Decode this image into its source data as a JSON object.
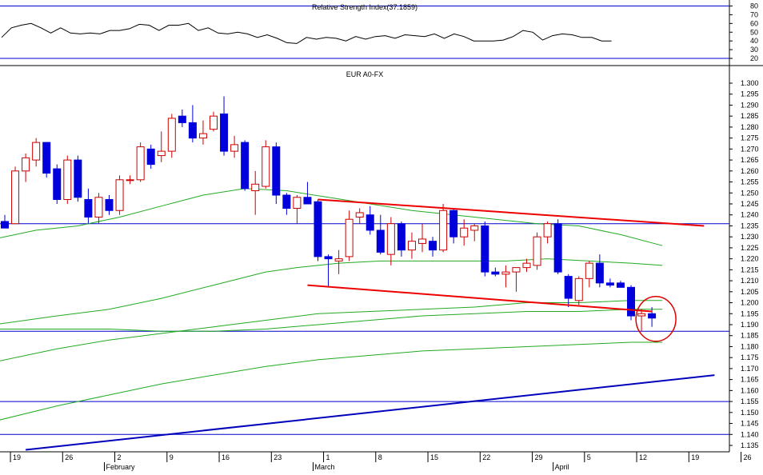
{
  "colors": {
    "up": "#cc0000",
    "down": "#0000dd",
    "ma": "#22aa22",
    "hline": "#0000cc",
    "trend_red": "#ee0000",
    "trend_blue": "#0000bb",
    "circle": "#dd0000",
    "frame": "#000000"
  },
  "chart_data": [
    {
      "type": "line",
      "title": "Relative Strength Index(37.1859)",
      "ylim": [
        20,
        80
      ],
      "ticks": [
        20,
        30,
        40,
        50,
        60,
        70,
        80
      ],
      "grid": false,
      "reference_lines": [
        80,
        20
      ],
      "series": [
        {
          "values": [
            44,
            55,
            58,
            60,
            55,
            49,
            55,
            49,
            48,
            49,
            48,
            52,
            52,
            54,
            59,
            58,
            52,
            58,
            58,
            60,
            52,
            55,
            49,
            48,
            50,
            48,
            44,
            47,
            43,
            38,
            37,
            44,
            42,
            44,
            43,
            40,
            45,
            42,
            45,
            46,
            43,
            47,
            46,
            45,
            48,
            43,
            48,
            45,
            40,
            40,
            40,
            41,
            45,
            52,
            50,
            41,
            46,
            48,
            47,
            44,
            44,
            40,
            40
          ]
        }
      ]
    },
    {
      "type": "candlestick",
      "title": "EUR A0-FX",
      "ylim": [
        1.133,
        1.303
      ],
      "ticks": [
        1.135,
        1.14,
        1.145,
        1.15,
        1.155,
        1.16,
        1.165,
        1.17,
        1.175,
        1.18,
        1.185,
        1.19,
        1.195,
        1.2,
        1.205,
        1.21,
        1.215,
        1.22,
        1.225,
        1.23,
        1.235,
        1.24,
        1.245,
        1.25,
        1.255,
        1.26,
        1.265,
        1.27,
        1.275,
        1.28,
        1.285,
        1.29,
        1.295,
        1.3
      ],
      "xlim": [
        0,
        76
      ],
      "x_tick_labels": [
        "19",
        "26",
        "2",
        "9",
        "16",
        "23",
        "1",
        "8",
        "15",
        "22",
        "29",
        "5",
        "12",
        "19",
        "26"
      ],
      "x_tick_positions": [
        1,
        6,
        11,
        16,
        21,
        26,
        31,
        36,
        41,
        46,
        51,
        56,
        61,
        66,
        71
      ],
      "month_labels": [
        {
          "label": "February",
          "x": 10
        },
        {
          "label": "March",
          "x": 30
        },
        {
          "label": "April",
          "x": 53
        }
      ],
      "candles": [
        {
          "x": 0,
          "o": 1.237,
          "h": 1.24,
          "l": 1.234,
          "c": 1.234
        },
        {
          "x": 1,
          "o": 1.236,
          "h": 1.262,
          "l": 1.236,
          "c": 1.26
        },
        {
          "x": 2,
          "o": 1.26,
          "h": 1.268,
          "l": 1.255,
          "c": 1.266
        },
        {
          "x": 3,
          "o": 1.265,
          "h": 1.275,
          "l": 1.262,
          "c": 1.273
        },
        {
          "x": 4,
          "o": 1.273,
          "h": 1.273,
          "l": 1.257,
          "c": 1.259
        },
        {
          "x": 5,
          "o": 1.261,
          "h": 1.263,
          "l": 1.245,
          "c": 1.247
        },
        {
          "x": 6,
          "o": 1.247,
          "h": 1.267,
          "l": 1.245,
          "c": 1.265
        },
        {
          "x": 7,
          "o": 1.265,
          "h": 1.267,
          "l": 1.246,
          "c": 1.248
        },
        {
          "x": 8,
          "o": 1.247,
          "h": 1.252,
          "l": 1.236,
          "c": 1.239
        },
        {
          "x": 9,
          "o": 1.239,
          "h": 1.25,
          "l": 1.236,
          "c": 1.248
        },
        {
          "x": 10,
          "o": 1.247,
          "h": 1.249,
          "l": 1.24,
          "c": 1.242
        },
        {
          "x": 11,
          "o": 1.242,
          "h": 1.258,
          "l": 1.24,
          "c": 1.256
        },
        {
          "x": 12,
          "o": 1.256,
          "h": 1.258,
          "l": 1.254,
          "c": 1.256
        },
        {
          "x": 13,
          "o": 1.256,
          "h": 1.273,
          "l": 1.255,
          "c": 1.271
        },
        {
          "x": 14,
          "o": 1.27,
          "h": 1.272,
          "l": 1.261,
          "c": 1.263
        },
        {
          "x": 15,
          "o": 1.267,
          "h": 1.278,
          "l": 1.264,
          "c": 1.269
        },
        {
          "x": 16,
          "o": 1.269,
          "h": 1.286,
          "l": 1.266,
          "c": 1.284
        },
        {
          "x": 17,
          "o": 1.285,
          "h": 1.288,
          "l": 1.28,
          "c": 1.282
        },
        {
          "x": 18,
          "o": 1.282,
          "h": 1.29,
          "l": 1.273,
          "c": 1.275
        },
        {
          "x": 19,
          "o": 1.275,
          "h": 1.283,
          "l": 1.272,
          "c": 1.277
        },
        {
          "x": 20,
          "o": 1.279,
          "h": 1.287,
          "l": 1.278,
          "c": 1.285
        },
        {
          "x": 21,
          "o": 1.286,
          "h": 1.294,
          "l": 1.267,
          "c": 1.269
        },
        {
          "x": 22,
          "o": 1.269,
          "h": 1.276,
          "l": 1.266,
          "c": 1.272
        },
        {
          "x": 23,
          "o": 1.273,
          "h": 1.274,
          "l": 1.251,
          "c": 1.252
        },
        {
          "x": 24,
          "o": 1.251,
          "h": 1.26,
          "l": 1.24,
          "c": 1.254
        },
        {
          "x": 25,
          "o": 1.253,
          "h": 1.274,
          "l": 1.252,
          "c": 1.271
        },
        {
          "x": 26,
          "o": 1.271,
          "h": 1.273,
          "l": 1.245,
          "c": 1.249
        },
        {
          "x": 27,
          "o": 1.249,
          "h": 1.25,
          "l": 1.24,
          "c": 1.243
        },
        {
          "x": 28,
          "o": 1.243,
          "h": 1.249,
          "l": 1.236,
          "c": 1.248
        },
        {
          "x": 29,
          "o": 1.248,
          "h": 1.255,
          "l": 1.245,
          "c": 1.245
        },
        {
          "x": 30,
          "o": 1.246,
          "h": 1.247,
          "l": 1.219,
          "c": 1.221
        },
        {
          "x": 31,
          "o": 1.221,
          "h": 1.222,
          "l": 1.207,
          "c": 1.22
        },
        {
          "x": 32,
          "o": 1.219,
          "h": 1.224,
          "l": 1.213,
          "c": 1.22
        },
        {
          "x": 33,
          "o": 1.221,
          "h": 1.242,
          "l": 1.219,
          "c": 1.238
        },
        {
          "x": 34,
          "o": 1.239,
          "h": 1.243,
          "l": 1.236,
          "c": 1.241
        },
        {
          "x": 35,
          "o": 1.24,
          "h": 1.244,
          "l": 1.231,
          "c": 1.233
        },
        {
          "x": 36,
          "o": 1.233,
          "h": 1.24,
          "l": 1.222,
          "c": 1.223
        },
        {
          "x": 37,
          "o": 1.222,
          "h": 1.239,
          "l": 1.217,
          "c": 1.236
        },
        {
          "x": 38,
          "o": 1.236,
          "h": 1.237,
          "l": 1.221,
          "c": 1.224
        },
        {
          "x": 39,
          "o": 1.224,
          "h": 1.232,
          "l": 1.22,
          "c": 1.228
        },
        {
          "x": 40,
          "o": 1.227,
          "h": 1.236,
          "l": 1.223,
          "c": 1.229
        },
        {
          "x": 41,
          "o": 1.228,
          "h": 1.23,
          "l": 1.221,
          "c": 1.224
        },
        {
          "x": 42,
          "o": 1.224,
          "h": 1.245,
          "l": 1.223,
          "c": 1.242
        },
        {
          "x": 43,
          "o": 1.242,
          "h": 1.243,
          "l": 1.227,
          "c": 1.23
        },
        {
          "x": 44,
          "o": 1.23,
          "h": 1.238,
          "l": 1.226,
          "c": 1.234
        },
        {
          "x": 45,
          "o": 1.233,
          "h": 1.236,
          "l": 1.228,
          "c": 1.235
        },
        {
          "x": 46,
          "o": 1.235,
          "h": 1.237,
          "l": 1.212,
          "c": 1.214
        },
        {
          "x": 47,
          "o": 1.214,
          "h": 1.216,
          "l": 1.212,
          "c": 1.213
        },
        {
          "x": 48,
          "o": 1.213,
          "h": 1.217,
          "l": 1.207,
          "c": 1.214
        },
        {
          "x": 49,
          "o": 1.214,
          "h": 1.216,
          "l": 1.205,
          "c": 1.216
        },
        {
          "x": 50,
          "o": 1.216,
          "h": 1.22,
          "l": 1.214,
          "c": 1.218
        },
        {
          "x": 51,
          "o": 1.217,
          "h": 1.232,
          "l": 1.215,
          "c": 1.23
        },
        {
          "x": 52,
          "o": 1.23,
          "h": 1.237,
          "l": 1.227,
          "c": 1.236
        },
        {
          "x": 53,
          "o": 1.236,
          "h": 1.238,
          "l": 1.213,
          "c": 1.214
        },
        {
          "x": 54,
          "o": 1.212,
          "h": 1.213,
          "l": 1.198,
          "c": 1.202
        },
        {
          "x": 55,
          "o": 1.201,
          "h": 1.212,
          "l": 1.199,
          "c": 1.211
        },
        {
          "x": 56,
          "o": 1.211,
          "h": 1.219,
          "l": 1.207,
          "c": 1.218
        },
        {
          "x": 57,
          "o": 1.218,
          "h": 1.222,
          "l": 1.207,
          "c": 1.209
        },
        {
          "x": 58,
          "o": 1.209,
          "h": 1.211,
          "l": 1.207,
          "c": 1.208
        },
        {
          "x": 59,
          "o": 1.209,
          "h": 1.21,
          "l": 1.207,
          "c": 1.207
        },
        {
          "x": 60,
          "o": 1.207,
          "h": 1.208,
          "l": 1.192,
          "c": 1.194
        },
        {
          "x": 61,
          "o": 1.194,
          "h": 1.197,
          "l": 1.187,
          "c": 1.195
        },
        {
          "x": 62,
          "o": 1.195,
          "h": 1.198,
          "l": 1.189,
          "c": 1.193
        }
      ],
      "moving_averages": [
        {
          "points": [
            [
              -1,
              1.229
            ],
            [
              3,
              1.233
            ],
            [
              7,
              1.235
            ],
            [
              11,
              1.239
            ],
            [
              15,
              1.244
            ],
            [
              19,
              1.249
            ],
            [
              23,
              1.252
            ],
            [
              27,
              1.251
            ],
            [
              31,
              1.248
            ],
            [
              35,
              1.245
            ],
            [
              39,
              1.242
            ],
            [
              43,
              1.24
            ],
            [
              47,
              1.238
            ],
            [
              51,
              1.236
            ],
            [
              55,
              1.235
            ],
            [
              59,
              1.231
            ],
            [
              63,
              1.226
            ]
          ]
        },
        {
          "points": [
            [
              -1,
              1.19
            ],
            [
              5,
              1.194
            ],
            [
              10,
              1.197
            ],
            [
              15,
              1.202
            ],
            [
              20,
              1.208
            ],
            [
              25,
              1.214
            ],
            [
              28,
              1.216
            ],
            [
              32,
              1.218
            ],
            [
              36,
              1.219
            ],
            [
              40,
              1.219
            ],
            [
              44,
              1.219
            ],
            [
              48,
              1.219
            ],
            [
              52,
              1.22
            ],
            [
              56,
              1.219
            ],
            [
              60,
              1.218
            ],
            [
              63,
              1.217
            ]
          ]
        },
        {
          "points": [
            [
              -1,
              1.188
            ],
            [
              5,
              1.188
            ],
            [
              10,
              1.188
            ],
            [
              15,
              1.187
            ],
            [
              20,
              1.187
            ],
            [
              25,
              1.188
            ],
            [
              30,
              1.19
            ],
            [
              35,
              1.192
            ],
            [
              40,
              1.194
            ],
            [
              45,
              1.195
            ],
            [
              50,
              1.196
            ],
            [
              55,
              1.196
            ],
            [
              60,
              1.197
            ],
            [
              63,
              1.197
            ]
          ]
        },
        {
          "points": [
            [
              -1,
              1.173
            ],
            [
              5,
              1.179
            ],
            [
              10,
              1.183
            ],
            [
              15,
              1.186
            ],
            [
              20,
              1.189
            ],
            [
              25,
              1.192
            ],
            [
              30,
              1.195
            ],
            [
              35,
              1.196
            ],
            [
              40,
              1.197
            ],
            [
              45,
              1.198
            ],
            [
              50,
              1.2
            ],
            [
              55,
              1.2
            ],
            [
              60,
              1.201
            ],
            [
              63,
              1.201
            ]
          ]
        },
        {
          "points": [
            [
              -1,
              1.146
            ],
            [
              5,
              1.153
            ],
            [
              10,
              1.158
            ],
            [
              15,
              1.163
            ],
            [
              20,
              1.167
            ],
            [
              25,
              1.171
            ],
            [
              30,
              1.174
            ],
            [
              35,
              1.176
            ],
            [
              40,
              1.178
            ],
            [
              45,
              1.179
            ],
            [
              50,
              1.18
            ],
            [
              55,
              1.181
            ],
            [
              60,
              1.182
            ],
            [
              63,
              1.182
            ]
          ]
        }
      ],
      "horizontal_lines": [
        1.236,
        1.187,
        1.155,
        1.14
      ],
      "trend_lines": [
        {
          "color": "red",
          "from": [
            30,
            1.247
          ],
          "to": [
            67,
            1.235
          ]
        },
        {
          "color": "red",
          "from": [
            29,
            1.208
          ],
          "to": [
            62,
            1.196
          ]
        },
        {
          "color": "blue",
          "from": [
            2,
            1.133
          ],
          "to": [
            68,
            1.167
          ]
        }
      ],
      "highlight_circle": {
        "x": 62,
        "y": 1.193
      }
    }
  ]
}
